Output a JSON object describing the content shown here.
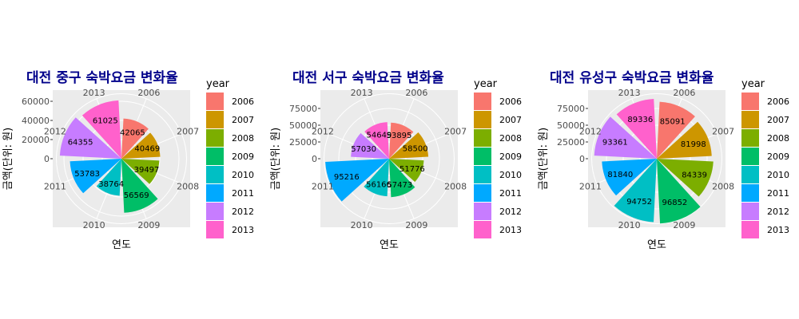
{
  "chart_data": [
    {
      "type": "polar-bar",
      "title": "대전 중구 숙박요금 변화율",
      "xlabel": "연도",
      "ylabel": "금액(단위: 원)",
      "legend_title": "year",
      "legend_position": "right",
      "categories": [
        "2006",
        "2007",
        "2008",
        "2009",
        "2010",
        "2011",
        "2012",
        "2013"
      ],
      "values": [
        42065,
        40469,
        39497,
        56569,
        38764,
        53783,
        64355,
        61025
      ],
      "ylim": [
        0,
        70000
      ],
      "yticks": [
        0,
        20000,
        40000,
        60000
      ],
      "ytick_labels": [
        "0",
        "20000",
        "40000",
        "60000"
      ]
    },
    {
      "type": "polar-bar",
      "title": "대전 서구 숙박요금 변화율",
      "xlabel": "연도",
      "ylabel": "금액(단위: 원)",
      "legend_title": "year",
      "legend_position": "right",
      "categories": [
        "2006",
        "2007",
        "2008",
        "2009",
        "2010",
        "2011",
        "2012",
        "2013"
      ],
      "values": [
        53895,
        58500,
        51776,
        57473,
        56166,
        95216,
        57030,
        54649
      ],
      "ylim": [
        0,
        100000
      ],
      "yticks": [
        0,
        25000,
        50000,
        75000
      ],
      "ytick_labels": [
        "0",
        "25000",
        "50000",
        "75000"
      ]
    },
    {
      "type": "polar-bar",
      "title": "대전 유성구 숙박요금 변화율",
      "xlabel": "연도",
      "ylabel": "금액(단위: 원)",
      "legend_title": "year",
      "legend_position": "right",
      "categories": [
        "2006",
        "2007",
        "2008",
        "2009",
        "2010",
        "2011",
        "2012",
        "2013"
      ],
      "values": [
        85091,
        81998,
        84339,
        96852,
        94752,
        81840,
        93361,
        89336
      ],
      "ylim": [
        0,
        100000
      ],
      "yticks": [
        0,
        25000,
        50000,
        75000
      ],
      "ytick_labels": [
        "0",
        "25000",
        "50000",
        "75000"
      ]
    }
  ],
  "colors": [
    "#F8766D",
    "#CD9600",
    "#7CAE00",
    "#00BE67",
    "#00BFC4",
    "#00A9FF",
    "#C77CFF",
    "#FF61CC"
  ],
  "panel_background": "#EBEBEB",
  "grid": "on"
}
